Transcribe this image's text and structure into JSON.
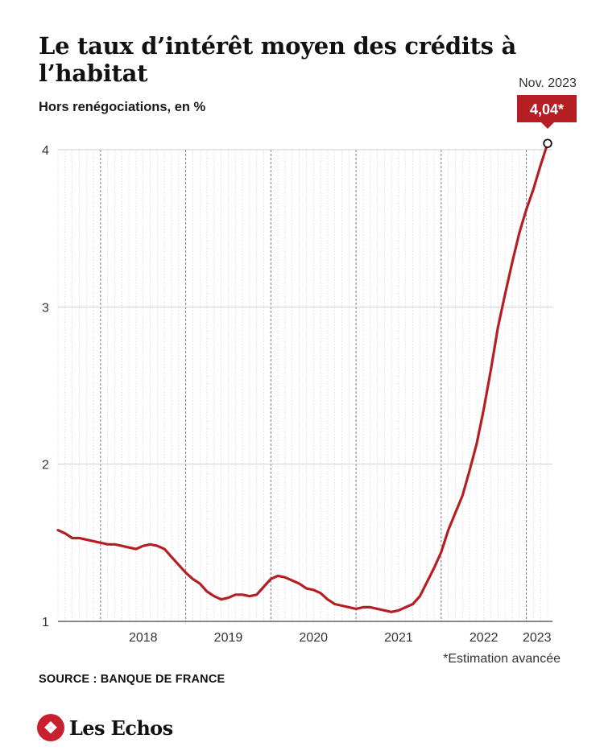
{
  "header": {
    "title": "Le taux d’intérêt moyen des crédits à l’habitat",
    "subtitle": "Hors renégociations, en %"
  },
  "annotation": {
    "date_label": "Nov. 2023",
    "value_label": "4,04*"
  },
  "footnote": "*Estimation avancée",
  "source": "SOURCE : BANQUE DE FRANCE",
  "brand": {
    "name": "Les Echos",
    "logo_icon": "eagle-icon"
  },
  "colors": {
    "line": "#b51f24",
    "badge": "#b51f24",
    "grid": "#c9c9c9",
    "text": "#1a1a1a"
  },
  "chart_data": {
    "type": "line",
    "title": "Le taux d’intérêt moyen des crédits à l’habitat",
    "subtitle": "Hors renégociations, en %",
    "xlabel": "",
    "ylabel": "",
    "ylim": [
      1,
      4
    ],
    "yticks": [
      "1",
      "2",
      "3",
      "4"
    ],
    "years": [
      "2018",
      "2019",
      "2020",
      "2021",
      "2022",
      "2023"
    ],
    "grid": true,
    "x_start": "2017-07",
    "x_end": "2023-11",
    "series": [
      {
        "values": [
          1.58,
          1.56,
          1.53,
          1.53,
          1.52,
          1.51,
          1.5,
          1.49,
          1.49,
          1.48,
          1.47,
          1.46,
          1.48,
          1.49,
          1.48,
          1.46,
          1.41,
          1.36,
          1.31,
          1.27,
          1.24,
          1.19,
          1.16,
          1.14,
          1.15,
          1.17,
          1.17,
          1.16,
          1.17,
          1.22,
          1.27,
          1.29,
          1.28,
          1.26,
          1.24,
          1.21,
          1.2,
          1.18,
          1.14,
          1.11,
          1.1,
          1.09,
          1.08,
          1.09,
          1.09,
          1.08,
          1.07,
          1.06,
          1.07,
          1.09,
          1.11,
          1.16,
          1.25,
          1.34,
          1.44,
          1.58,
          1.69,
          1.8,
          1.96,
          2.13,
          2.35,
          2.6,
          2.87,
          3.08,
          3.28,
          3.47,
          3.62,
          3.75,
          3.9,
          4.04
        ]
      }
    ],
    "highlight": {
      "date": "2023-11",
      "value": 4.04,
      "label": "4,04*"
    }
  }
}
